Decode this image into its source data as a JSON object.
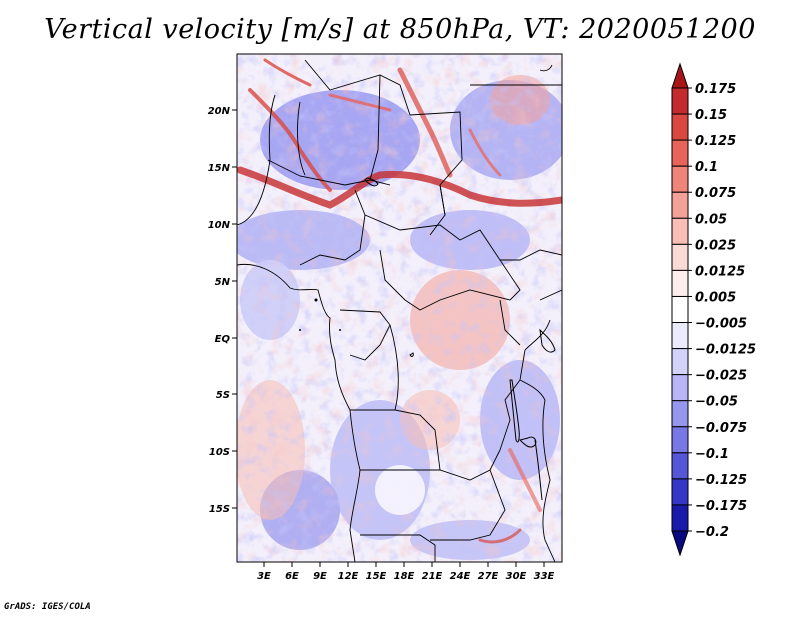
{
  "title": "Vertical velocity [m/s] at 850hPa, VT: 2020051200",
  "credit": "GrADS: IGES/COLA",
  "map": {
    "lat_labels": [
      "20N",
      "15N",
      "10N",
      "5N",
      "EQ",
      "5S",
      "10S",
      "15S"
    ],
    "lon_labels": [
      "3E",
      "6E",
      "9E",
      "12E",
      "15E",
      "18E",
      "21E",
      "24E",
      "27E",
      "30E",
      "33E"
    ]
  },
  "colorbar": {
    "levels": [
      "0.175",
      "0.15",
      "0.125",
      "0.1",
      "0.075",
      "0.05",
      "0.025",
      "0.0125",
      "0.005",
      "-0.005",
      "-0.0125",
      "-0.025",
      "-0.05",
      "-0.075",
      "-0.1",
      "-0.125",
      "-0.175",
      "-0.2"
    ],
    "colors": [
      "#a81518",
      "#c52a2c",
      "#d9473f",
      "#e86358",
      "#ef8478",
      "#f4a197",
      "#f8bdb5",
      "#fbd9d4",
      "#fdeeec",
      "#ffffff",
      "#ebebfd",
      "#d2d2fb",
      "#b6b6f6",
      "#9696ef",
      "#7777e6",
      "#5656d8",
      "#3535c6",
      "#1a1aaa",
      "#0a0a80"
    ]
  }
}
